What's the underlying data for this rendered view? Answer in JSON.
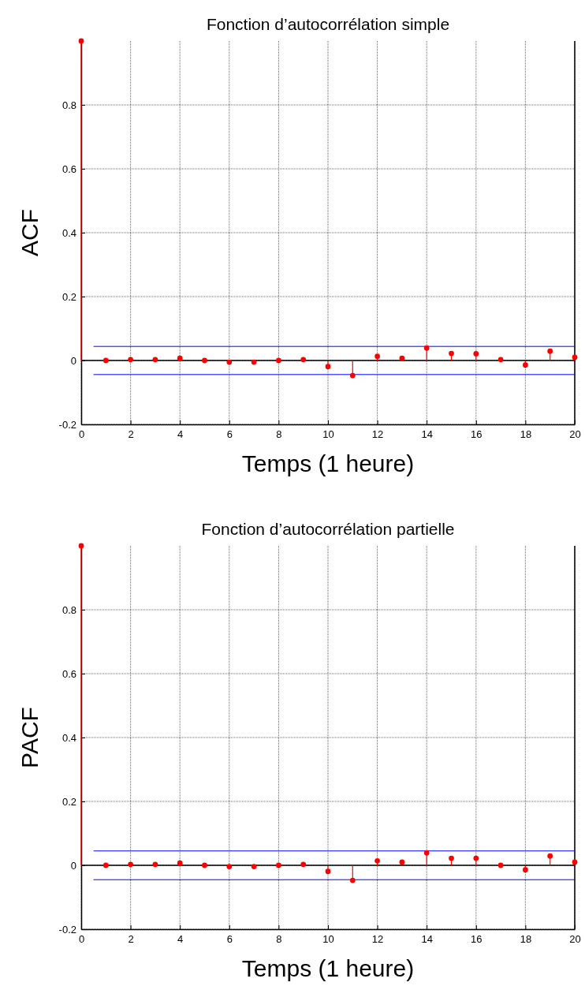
{
  "chart_data": [
    {
      "type": "lollipop",
      "title": "Fonction d’autocorrélation simple",
      "xlabel": "Temps (1 heure)",
      "ylabel": "ACF",
      "x": [
        0,
        1,
        2,
        3,
        4,
        5,
        6,
        7,
        8,
        9,
        10,
        11,
        12,
        13,
        14,
        15,
        16,
        17,
        18,
        19,
        20
      ],
      "series": [
        {
          "color": "#ff0000",
          "values": [
            1,
            0,
            0.003,
            0.003,
            0.007,
            0,
            -0.005,
            -0.005,
            0,
            0.003,
            -0.019,
            -0.047,
            0.013,
            0.007,
            0.039,
            0.022,
            0.021,
            0.003,
            -0.014,
            0.029,
            0.01
          ]
        }
      ],
      "xlim": [
        0,
        20
      ],
      "ylim": [
        -0.2,
        1
      ],
      "xticks": [
        0,
        2,
        4,
        6,
        8,
        10,
        12,
        14,
        16,
        18,
        20
      ],
      "yticks": [
        -0.2,
        0,
        0.2,
        0.4,
        0.6,
        0.8
      ],
      "grid": true,
      "marker": "circle",
      "ref_lines": [
        {
          "axis": "y",
          "value": 0.044,
          "color": "#0000ff"
        },
        {
          "axis": "y",
          "value": -0.044,
          "color": "#0000ff"
        }
      ]
    },
    {
      "type": "lollipop",
      "title": "Fonction d’autocorrélation partielle",
      "xlabel": "Temps (1 heure)",
      "ylabel": "PACF",
      "x": [
        0,
        1,
        2,
        3,
        4,
        5,
        6,
        7,
        8,
        9,
        10,
        11,
        12,
        13,
        14,
        15,
        16,
        17,
        18,
        19,
        20
      ],
      "series": [
        {
          "color": "#ff0000",
          "values": [
            1,
            0,
            0.003,
            0.003,
            0.007,
            0,
            -0.004,
            -0.004,
            0,
            0.003,
            -0.019,
            -0.047,
            0.014,
            0.01,
            0.039,
            0.022,
            0.022,
            0,
            -0.014,
            0.029,
            0.01
          ]
        }
      ],
      "xlim": [
        0,
        20
      ],
      "ylim": [
        -0.2,
        1
      ],
      "xticks": [
        0,
        2,
        4,
        6,
        8,
        10,
        12,
        14,
        16,
        18,
        20
      ],
      "yticks": [
        -0.2,
        0,
        0.2,
        0.4,
        0.6,
        0.8
      ],
      "grid": true,
      "marker": "circle",
      "ref_lines": [
        {
          "axis": "y",
          "value": 0.045,
          "color": "#0000ff"
        },
        {
          "axis": "y",
          "value": -0.045,
          "color": "#0000ff"
        }
      ]
    }
  ]
}
